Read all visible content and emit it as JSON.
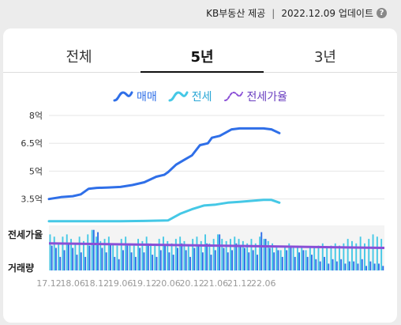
{
  "header": {
    "source": "KB부동산 제공",
    "updated": "2022.12.09 업데이트",
    "help": "?"
  },
  "tabs": [
    {
      "label": "전체",
      "active": false
    },
    {
      "label": "5년",
      "active": true
    },
    {
      "label": "3년",
      "active": false
    }
  ],
  "legend": [
    {
      "label": "매매",
      "color": "#2f6fe8",
      "icon": "sale-wave-icon"
    },
    {
      "label": "전세",
      "color": "#45c8e6",
      "icon": "jeonse-wave-icon"
    },
    {
      "label": "전세가율",
      "color": "#8a4fd6",
      "icon": "ratio-wave-icon"
    }
  ],
  "chart_data": {
    "type": "line",
    "y_ticks": [
      {
        "label": "8억",
        "value": 8.0
      },
      {
        "label": "6.5억",
        "value": 6.5
      },
      {
        "label": "5억",
        "value": 5.0
      },
      {
        "label": "3.5억",
        "value": 3.5
      }
    ],
    "ylim": [
      2.25,
      8.0
    ],
    "x_ticks": [
      "17.12",
      "18.06",
      "18.12",
      "19.06",
      "19.12",
      "20.06",
      "20.12",
      "21.06",
      "21.12",
      "22.06"
    ],
    "series": [
      {
        "name": "매매",
        "color": "#2f6fe8",
        "points": [
          [
            "17.12",
            3.5
          ],
          [
            "18.03",
            3.6
          ],
          [
            "18.06",
            3.65
          ],
          [
            "18.08",
            3.75
          ],
          [
            "18.10",
            4.05
          ],
          [
            "18.12",
            4.1
          ],
          [
            "19.03",
            4.12
          ],
          [
            "19.06",
            4.15
          ],
          [
            "19.09",
            4.25
          ],
          [
            "19.12",
            4.4
          ],
          [
            "20.03",
            4.7
          ],
          [
            "20.05",
            4.8
          ],
          [
            "20.06",
            4.95
          ],
          [
            "20.08",
            5.35
          ],
          [
            "20.10",
            5.6
          ],
          [
            "20.12",
            5.85
          ],
          [
            "21.02",
            6.4
          ],
          [
            "21.04",
            6.5
          ],
          [
            "21.05",
            6.8
          ],
          [
            "21.07",
            6.9
          ],
          [
            "21.10",
            7.25
          ],
          [
            "21.12",
            7.3
          ],
          [
            "22.03",
            7.3
          ],
          [
            "22.06",
            7.3
          ],
          [
            "22.08",
            7.25
          ],
          [
            "22.10",
            7.05
          ]
        ]
      },
      {
        "name": "전세",
        "color": "#45c8e6",
        "points": [
          [
            "17.12",
            2.3
          ],
          [
            "18.06",
            2.3
          ],
          [
            "18.12",
            2.3
          ],
          [
            "19.06",
            2.3
          ],
          [
            "19.12",
            2.32
          ],
          [
            "20.06",
            2.35
          ],
          [
            "20.09",
            2.7
          ],
          [
            "20.12",
            2.95
          ],
          [
            "21.03",
            3.15
          ],
          [
            "21.06",
            3.2
          ],
          [
            "21.09",
            3.3
          ],
          [
            "21.12",
            3.35
          ],
          [
            "22.03",
            3.4
          ],
          [
            "22.06",
            3.45
          ],
          [
            "22.08",
            3.45
          ],
          [
            "22.10",
            3.3
          ]
        ]
      }
    ],
    "ratio_series": {
      "name": "전세가율",
      "color": "#8a4fd6",
      "label": "전세가율",
      "start": 0.6,
      "end": 0.5
    },
    "volume": {
      "label": "거래량",
      "colors": [
        "#2f6fe8",
        "#45c8e6"
      ],
      "sale": [
        0.55,
        0.5,
        0.3,
        0.45,
        0.6,
        0.5,
        0.35,
        0.4,
        0.3,
        0.55,
        0.9,
        0.85,
        0.5,
        0.4,
        0.6,
        0.3,
        0.25,
        0.45,
        0.55,
        0.4,
        0.3,
        0.5,
        0.4,
        0.6,
        0.35,
        0.3,
        0.45,
        0.55,
        0.4,
        0.35,
        0.5,
        0.6,
        0.45,
        0.3,
        0.5,
        0.55,
        0.4,
        0.6,
        0.35,
        0.45,
        0.8,
        0.5,
        0.4,
        0.45,
        0.6,
        0.55,
        0.5,
        0.4,
        0.45,
        0.35,
        0.85,
        0.7,
        0.5,
        0.4,
        0.45,
        0.3,
        0.45,
        0.55,
        0.3,
        0.4,
        0.45,
        0.3,
        0.35,
        0.25,
        0.2,
        0.3,
        0.15,
        0.25,
        0.2,
        0.25,
        0.15,
        0.2,
        0.2,
        0.15,
        0.25,
        0.1,
        0.2,
        0.15,
        0.15,
        0.1
      ],
      "jeonse": [
        0.8,
        0.75,
        0.6,
        0.75,
        0.8,
        0.7,
        0.6,
        0.75,
        0.65,
        0.8,
        0.9,
        0.75,
        0.65,
        0.7,
        0.75,
        0.6,
        0.55,
        0.7,
        0.75,
        0.6,
        0.55,
        0.7,
        0.65,
        0.75,
        0.6,
        0.55,
        0.7,
        0.75,
        0.65,
        0.6,
        0.7,
        0.75,
        0.65,
        0.55,
        0.7,
        0.75,
        0.65,
        0.8,
        0.6,
        0.7,
        0.8,
        0.7,
        0.65,
        0.7,
        0.75,
        0.7,
        0.65,
        0.6,
        0.7,
        0.6,
        0.75,
        0.7,
        0.65,
        0.6,
        0.55,
        0.45,
        0.55,
        0.6,
        0.5,
        0.55,
        0.5,
        0.45,
        0.5,
        0.5,
        0.55,
        0.6,
        0.5,
        0.55,
        0.6,
        0.55,
        0.6,
        0.7,
        0.65,
        0.6,
        0.75,
        0.6,
        0.7,
        0.8,
        0.75,
        0.7
      ]
    },
    "grid": true
  }
}
